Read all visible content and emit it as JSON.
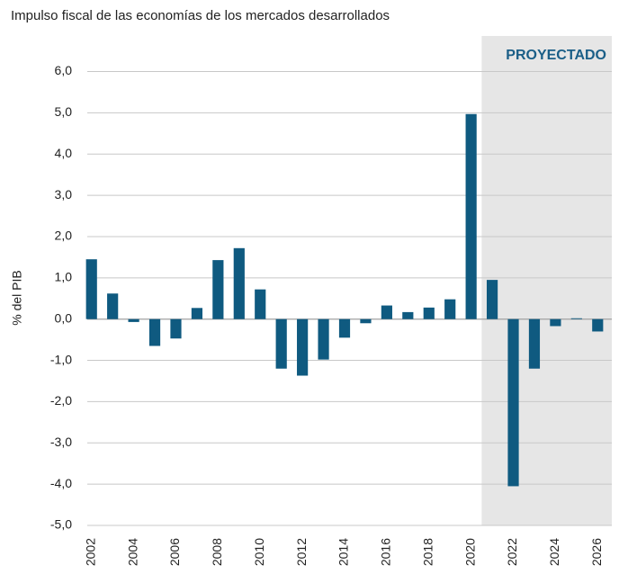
{
  "chart_data": {
    "type": "bar",
    "title": "Impulso fiscal de las economías de los mercados desarrollados",
    "y_label": "% del PIB",
    "annotation": "PROYECTADO",
    "categories": [
      "2002",
      null,
      "2004",
      null,
      "2006",
      null,
      "2008",
      null,
      "2010",
      null,
      "2012",
      null,
      "2014",
      null,
      "2016",
      null,
      "2018",
      null,
      "2020",
      null,
      "2022",
      null,
      "2024",
      null,
      "2026"
    ],
    "values": [
      1.45,
      0.62,
      -0.07,
      -0.65,
      -0.47,
      0.27,
      1.43,
      1.72,
      0.72,
      -1.2,
      -1.37,
      -0.98,
      -0.45,
      -0.1,
      0.33,
      0.17,
      0.28,
      0.48,
      4.97,
      0.95,
      -4.05,
      -1.2,
      -0.17,
      0.02,
      -0.3
    ],
    "color": "#0f5a80",
    "ylim": [
      -5,
      6.6
    ],
    "yticks": [
      {
        "value": 6,
        "label": "6,0"
      },
      {
        "value": 5,
        "label": "5,0"
      },
      {
        "value": 4,
        "label": "4,0"
      },
      {
        "value": 3,
        "label": "3,0"
      },
      {
        "value": 2,
        "label": "2,0"
      },
      {
        "value": 1,
        "label": "1,0"
      },
      {
        "value": 0,
        "label": "0,0"
      },
      {
        "value": -1,
        "label": "-1,0"
      },
      {
        "value": -2,
        "label": "-2,0"
      },
      {
        "value": -3,
        "label": "-3,0"
      },
      {
        "value": -4,
        "label": "-4,0"
      },
      {
        "value": -5,
        "label": "-5,0"
      }
    ],
    "grid": true
  }
}
